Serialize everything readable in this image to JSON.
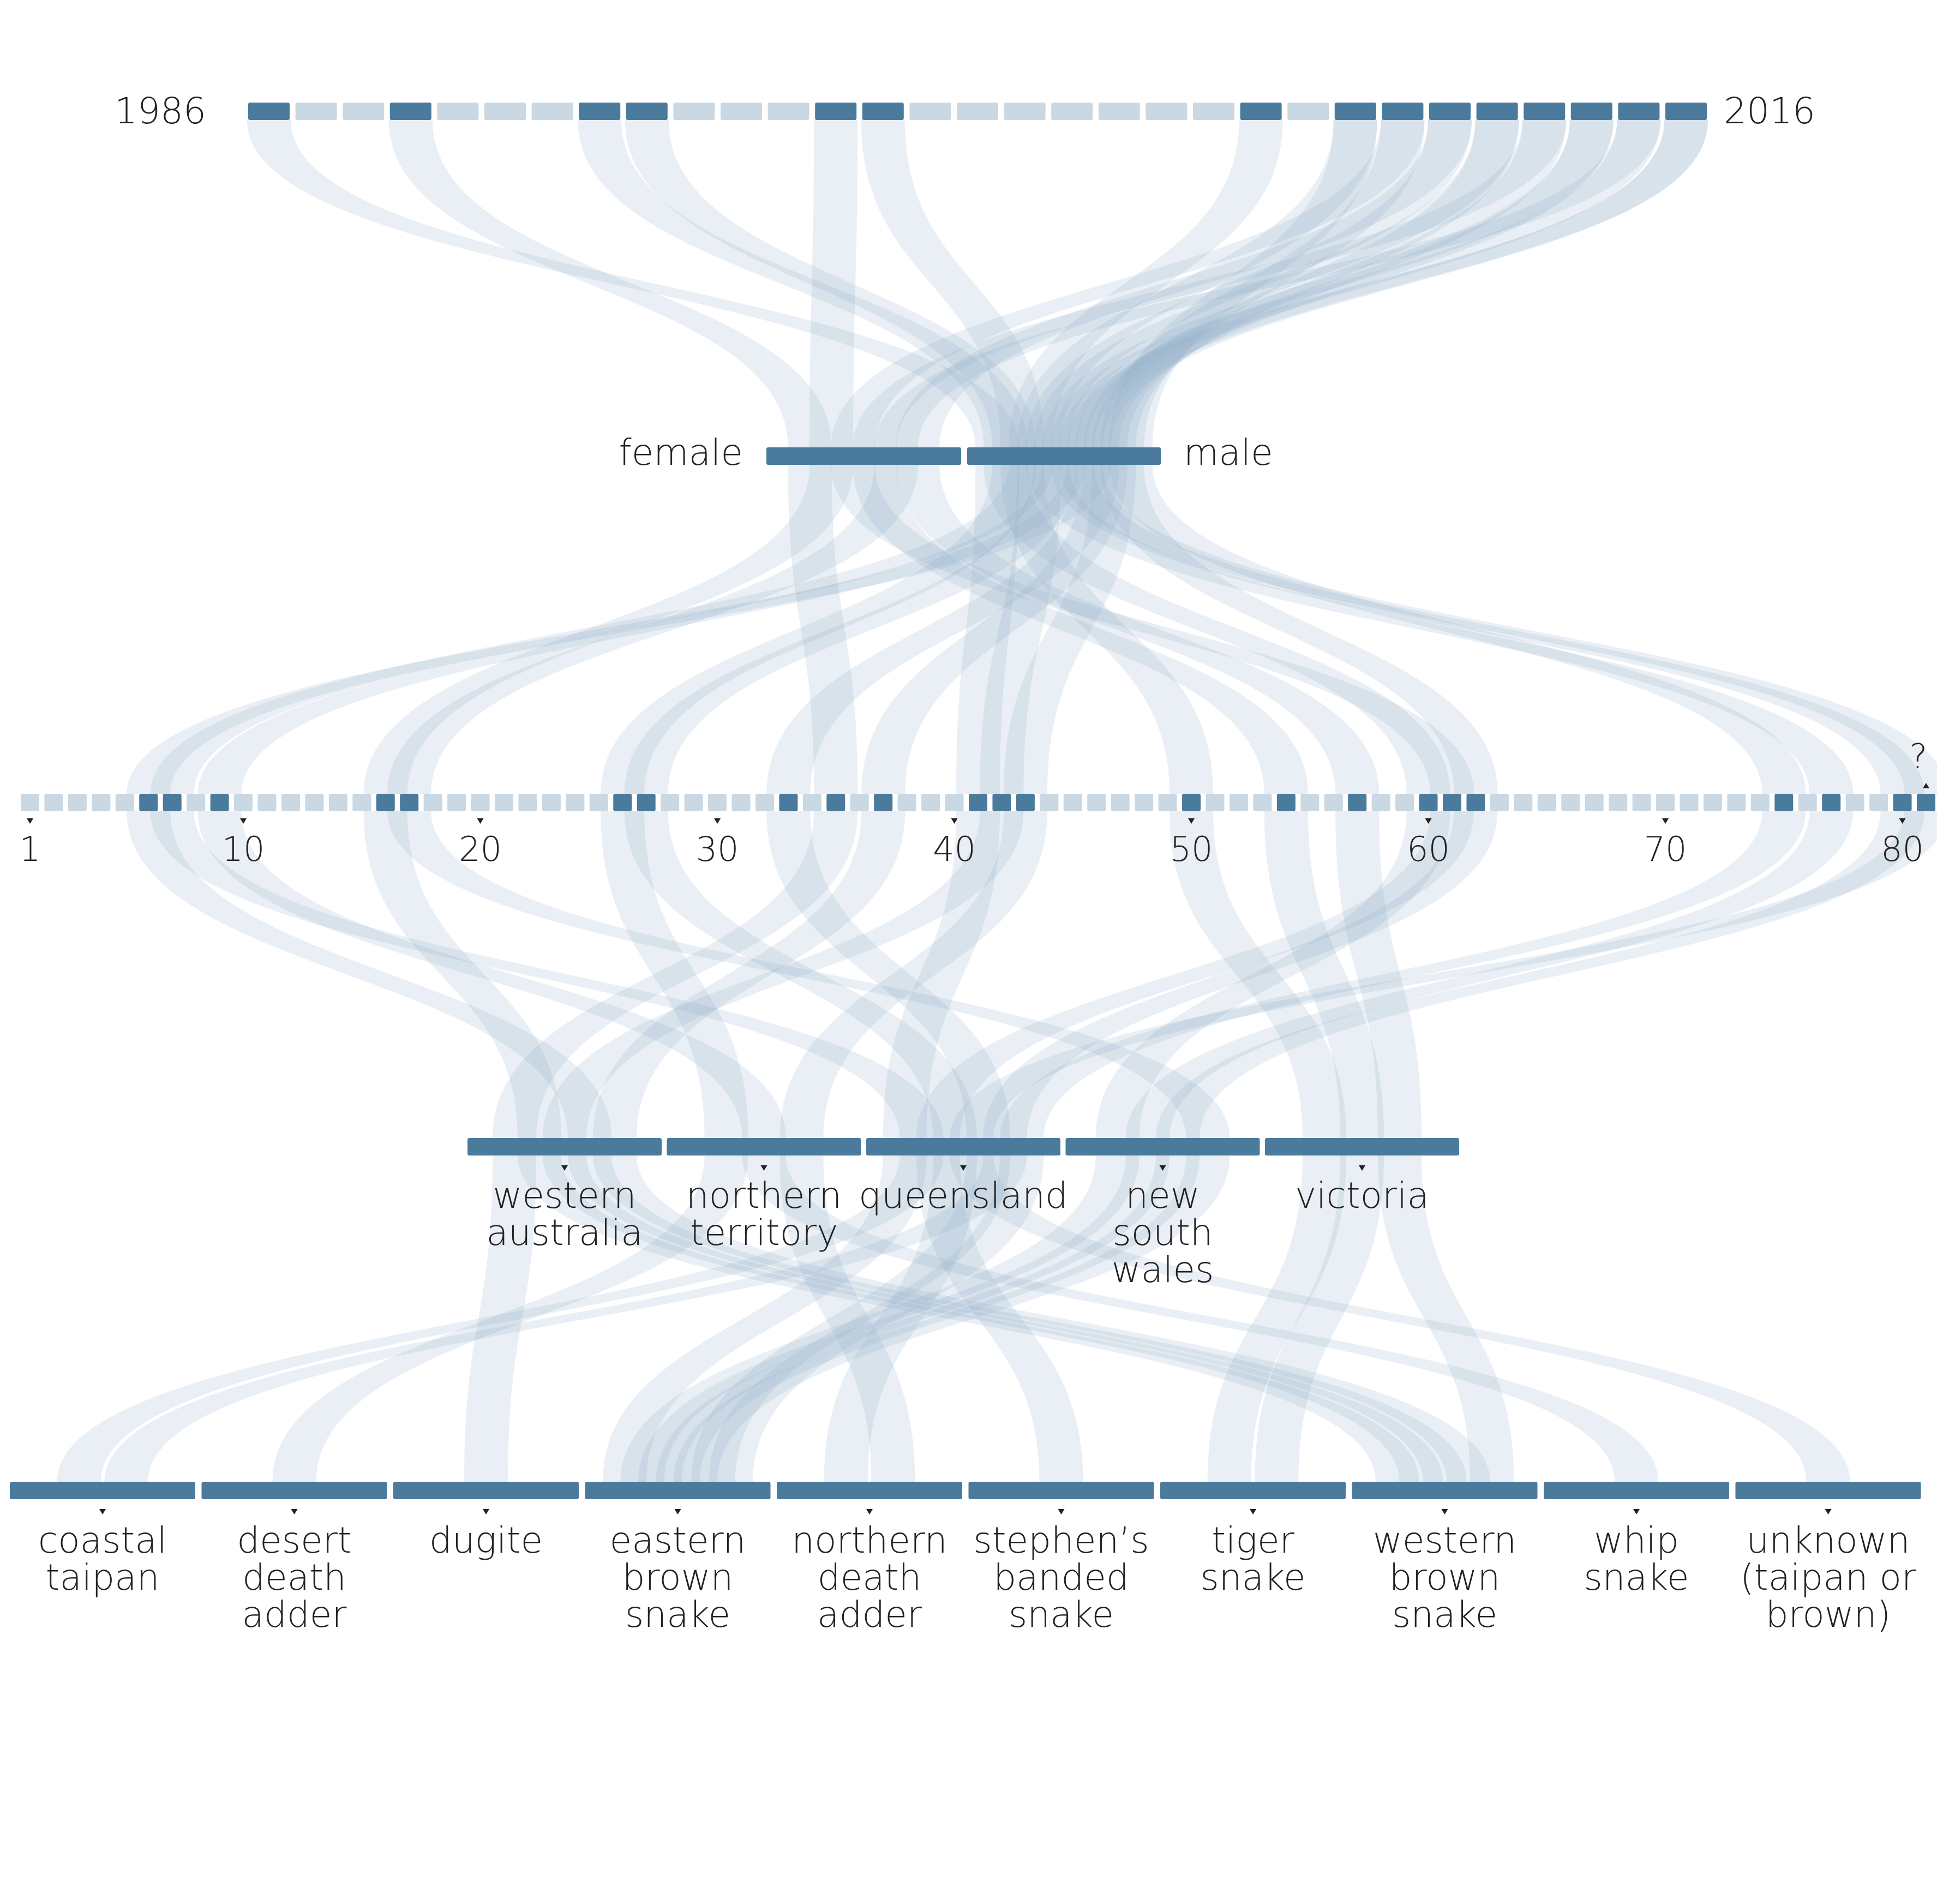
{
  "colors": {
    "band": "#4a7b9d",
    "band_light": "#c9d8e3",
    "flow": "#8fb0c6",
    "text": "#222222",
    "background": "#ffffff"
  },
  "years": {
    "start_label": "1986",
    "end_label": "2016",
    "values": [
      1986,
      1987,
      1988,
      1989,
      1990,
      1991,
      1992,
      1993,
      1994,
      1995,
      1996,
      1997,
      1998,
      1999,
      2000,
      2001,
      2002,
      2003,
      2004,
      2005,
      2006,
      2007,
      2008,
      2009,
      2010,
      2011,
      2012,
      2013,
      2014,
      2015,
      2016
    ],
    "active": [
      1986,
      1989,
      1993,
      1994,
      1998,
      1999,
      2007,
      2009,
      2010,
      2011,
      2012,
      2013,
      2014,
      2015,
      2016
    ]
  },
  "sex": {
    "items": [
      {
        "id": "female",
        "label": "female"
      },
      {
        "id": "male",
        "label": "male"
      }
    ]
  },
  "age": {
    "tick_labels": [
      "1",
      "10",
      "20",
      "30",
      "40",
      "50",
      "60",
      "70",
      "80"
    ],
    "unknown_label": "?",
    "max": 80,
    "active": [
      6,
      7,
      9,
      16,
      17,
      26,
      27,
      33,
      35,
      37,
      41,
      42,
      43,
      50,
      54,
      57,
      60,
      61,
      62,
      75,
      77,
      80,
      "?"
    ]
  },
  "states": {
    "items": [
      {
        "id": "wa",
        "label": "western australia",
        "lines": [
          "western",
          "australia"
        ]
      },
      {
        "id": "nt",
        "label": "northern territory",
        "lines": [
          "northern",
          "territory"
        ]
      },
      {
        "id": "qld",
        "label": "queensland",
        "lines": [
          "queensland"
        ]
      },
      {
        "id": "nsw",
        "label": "new south wales",
        "lines": [
          "new",
          "south",
          "wales"
        ]
      },
      {
        "id": "vic",
        "label": "victoria",
        "lines": [
          "victoria"
        ]
      }
    ]
  },
  "snakes": {
    "items": [
      {
        "id": "coastal_taipan",
        "label": "coastal taipan",
        "lines": [
          "coastal",
          "taipan"
        ]
      },
      {
        "id": "desert_death_adder",
        "label": "desert death adder",
        "lines": [
          "desert",
          "death",
          "adder"
        ]
      },
      {
        "id": "dugite",
        "label": "dugite",
        "lines": [
          "dugite"
        ]
      },
      {
        "id": "eastern_brown",
        "label": "eastern brown snake",
        "lines": [
          "eastern",
          "brown",
          "snake"
        ]
      },
      {
        "id": "northern_death_adder",
        "label": "northern death adder",
        "lines": [
          "northern",
          "death",
          "adder"
        ]
      },
      {
        "id": "stephens_banded",
        "label": "stephen’s banded snake",
        "lines": [
          "stephen’s",
          "banded",
          "snake"
        ]
      },
      {
        "id": "tiger",
        "label": "tiger snake",
        "lines": [
          "tiger",
          "snake"
        ]
      },
      {
        "id": "western_brown",
        "label": "western brown snake",
        "lines": [
          "western",
          "brown",
          "snake"
        ]
      },
      {
        "id": "whip",
        "label": "whip snake",
        "lines": [
          "whip",
          "snake"
        ]
      },
      {
        "id": "unknown",
        "label": "unknown (taipan or brown)",
        "lines": [
          "unknown",
          "(taipan or",
          "brown)"
        ]
      }
    ]
  },
  "cases": [
    {
      "year": 1986,
      "sex": "male",
      "age": 41,
      "state": "qld",
      "snake": "eastern_brown"
    },
    {
      "year": 1989,
      "sex": "female",
      "age": 35,
      "state": "wa",
      "snake": "dugite"
    },
    {
      "year": 1993,
      "sex": "male",
      "age": 60,
      "state": "nsw",
      "snake": "eastern_brown"
    },
    {
      "year": 1994,
      "sex": "male",
      "age": 26,
      "state": "nt",
      "snake": "desert_death_adder"
    },
    {
      "year": 1998,
      "sex": "female",
      "age": 16,
      "state": "wa",
      "snake": "western_brown"
    },
    {
      "year": 1999,
      "sex": "male",
      "age": 50,
      "state": "vic",
      "snake": "tiger"
    },
    {
      "year": 2007,
      "sex": "male",
      "age": 7,
      "state": "qld",
      "snake": "coastal_taipan"
    },
    {
      "year": 2009,
      "sex": "male",
      "age": 42,
      "state": "wa",
      "snake": "western_brown"
    },
    {
      "year": 2010,
      "sex": "female",
      "age": 61,
      "state": "qld",
      "snake": "stephens_banded"
    },
    {
      "year": 2011,
      "sex": "male",
      "age": 77,
      "state": "nsw",
      "snake": "eastern_brown"
    },
    {
      "year": 2012,
      "sex": "male",
      "age": 27,
      "state": "qld",
      "snake": "northern_death_adder"
    },
    {
      "year": 2013,
      "sex": "female",
      "age": 54,
      "state": "vic",
      "snake": "tiger"
    },
    {
      "year": 2014,
      "sex": "male",
      "age": 9,
      "state": "nt",
      "snake": "whip"
    },
    {
      "year": 2015,
      "sex": "male",
      "age": 80,
      "state": "nsw",
      "snake": "eastern_brown"
    },
    {
      "year": 2016,
      "sex": "male",
      "age": "?",
      "state": "qld",
      "snake": "unknown"
    },
    {
      "year": 2016,
      "sex": "male",
      "age": 6,
      "state": "wa",
      "snake": "western_brown"
    },
    {
      "year": 2015,
      "sex": "female",
      "age": 17,
      "state": "nsw",
      "snake": "eastern_brown"
    },
    {
      "year": 2014,
      "sex": "male",
      "age": 33,
      "state": "qld",
      "snake": "eastern_brown"
    },
    {
      "year": 2013,
      "sex": "male",
      "age": 37,
      "state": "wa",
      "snake": "western_brown"
    },
    {
      "year": 2012,
      "sex": "male",
      "age": 43,
      "state": "nt",
      "snake": "northern_death_adder"
    },
    {
      "year": 2011,
      "sex": "female",
      "age": 57,
      "state": "vic",
      "snake": "western_brown"
    },
    {
      "year": 2010,
      "sex": "male",
      "age": 62,
      "state": "qld",
      "snake": "coastal_taipan"
    },
    {
      "year": 2009,
      "sex": "male",
      "age": 75,
      "state": "qld",
      "snake": "eastern_brown"
    }
  ]
}
